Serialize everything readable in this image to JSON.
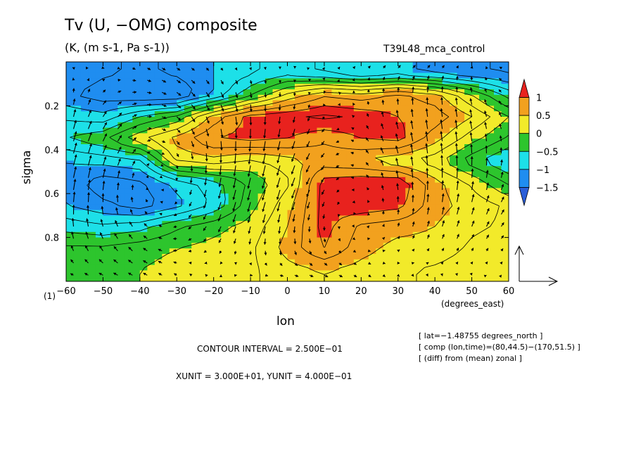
{
  "chart_data": {
    "type": "heatmap",
    "title": "Tv (U, −OMG) composite",
    "units_line": "(K, (m s-1, Pa s-1))",
    "run_name": "T39L48_mca_control",
    "xlabel": "lon",
    "xlabel_units": "(degrees_east)",
    "ylabel": "sigma",
    "x_ticks": [
      "−60",
      "−50",
      "−40",
      "−30",
      "−20",
      "−10",
      "0",
      "10",
      "20",
      "30",
      "40",
      "50",
      "60"
    ],
    "y_ticks": [
      "0.2",
      "0.4",
      "0.6",
      "0.8"
    ],
    "y_extra_label": "(1)",
    "xlim": [
      -60,
      60
    ],
    "ylim": [
      1.0,
      0.0
    ],
    "colorbar": {
      "labels": [
        "1",
        "0.5",
        "0",
        "−0.5",
        "−1",
        "−1.5"
      ],
      "colors": [
        "#e8221e",
        "#f2a11e",
        "#f2ea2a",
        "#2dc52d",
        "#1de0e8",
        "#1f8df0",
        "#2a5ed8"
      ]
    },
    "field": {
      "x": [
        -60,
        -50,
        -40,
        -30,
        -20,
        -10,
        0,
        10,
        20,
        30,
        40,
        50,
        60
      ],
      "sigma": [
        0.05,
        0.15,
        0.25,
        0.35,
        0.45,
        0.55,
        0.65,
        0.75,
        0.85,
        0.95
      ],
      "values": [
        [
          -1.0,
          -1.2,
          -1.3,
          -1.2,
          -1.0,
          -0.8,
          -0.6,
          -0.8,
          -1.0,
          -0.9,
          -1.1,
          -1.2,
          -1.3
        ],
        [
          -1.2,
          -1.4,
          -1.5,
          -1.5,
          -1.0,
          -0.3,
          0.3,
          0.7,
          0.6,
          0.8,
          0.6,
          0.0,
          -0.6
        ],
        [
          -0.8,
          -0.9,
          -0.5,
          -0.2,
          0.6,
          1.1,
          1.2,
          1.3,
          1.2,
          1.0,
          0.9,
          0.5,
          0.0
        ],
        [
          -0.5,
          -0.3,
          0.2,
          0.6,
          1.0,
          1.1,
          1.0,
          0.8,
          1.0,
          1.1,
          0.6,
          0.1,
          -0.3
        ],
        [
          -1.0,
          -0.9,
          -0.8,
          0.3,
          0.4,
          0.2,
          0.4,
          0.6,
          0.5,
          0.3,
          0.1,
          -0.4,
          -0.8
        ],
        [
          -1.1,
          -1.4,
          -1.3,
          -0.9,
          -0.6,
          -0.2,
          0.2,
          1.1,
          1.2,
          1.2,
          0.6,
          0.2,
          -0.3
        ],
        [
          -1.0,
          -1.2,
          -1.4,
          -1.1,
          -0.7,
          -0.1,
          0.4,
          1.1,
          1.2,
          1.1,
          0.6,
          0.4,
          0.2
        ],
        [
          -0.6,
          -0.7,
          -0.6,
          -0.3,
          -0.1,
          0.1,
          0.5,
          1.1,
          0.7,
          0.6,
          0.5,
          0.3,
          0.2
        ],
        [
          -0.2,
          -0.2,
          -0.1,
          0.0,
          0.1,
          0.2,
          0.6,
          1.0,
          0.6,
          0.4,
          0.4,
          0.2,
          0.1
        ],
        [
          -0.1,
          -0.1,
          0.0,
          0.1,
          0.1,
          0.2,
          0.4,
          0.5,
          0.4,
          0.3,
          0.2,
          0.1,
          0.0
        ]
      ]
    },
    "vector_reference": {
      "xunit": "3.000E+01",
      "yunit": "4.000E−01"
    },
    "annotations": {
      "contour_interval": "CONTOUR INTERVAL = 2.500E−01",
      "xy_units": "XUNIT = 3.000E+01, YUNIT = 4.000E−01",
      "meta": [
        "[ lat=−1.48755 degrees_north ]",
        "[ comp (lon,time)=(80,44.5)−(170,51.5) ]",
        "[ (diff) from (mean) zonal ]"
      ]
    }
  }
}
